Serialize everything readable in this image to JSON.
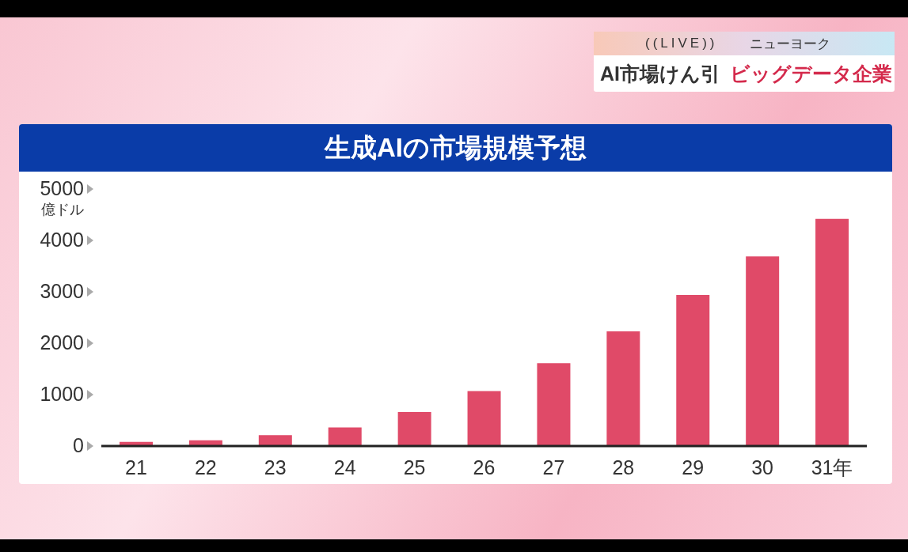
{
  "chart_data": {
    "type": "bar",
    "title": "生成AIの市場規模予想",
    "ylabel": "億ドル",
    "categories": [
      "21",
      "22",
      "23",
      "24",
      "25",
      "26",
      "27",
      "28",
      "29",
      "30",
      "31年"
    ],
    "values": [
      80,
      110,
      210,
      360,
      660,
      1070,
      1610,
      2230,
      2940,
      3690,
      4420
    ],
    "color": "#e04a68",
    "ylim": [
      0,
      5000
    ],
    "yticks": [
      0,
      1000,
      2000,
      3000,
      4000,
      5000
    ],
    "grid": false,
    "legend": false,
    "annotations": [
      "((LIVE))",
      "ニューヨーク",
      "AI市場けん引",
      "ビッグデータ企業"
    ]
  }
}
